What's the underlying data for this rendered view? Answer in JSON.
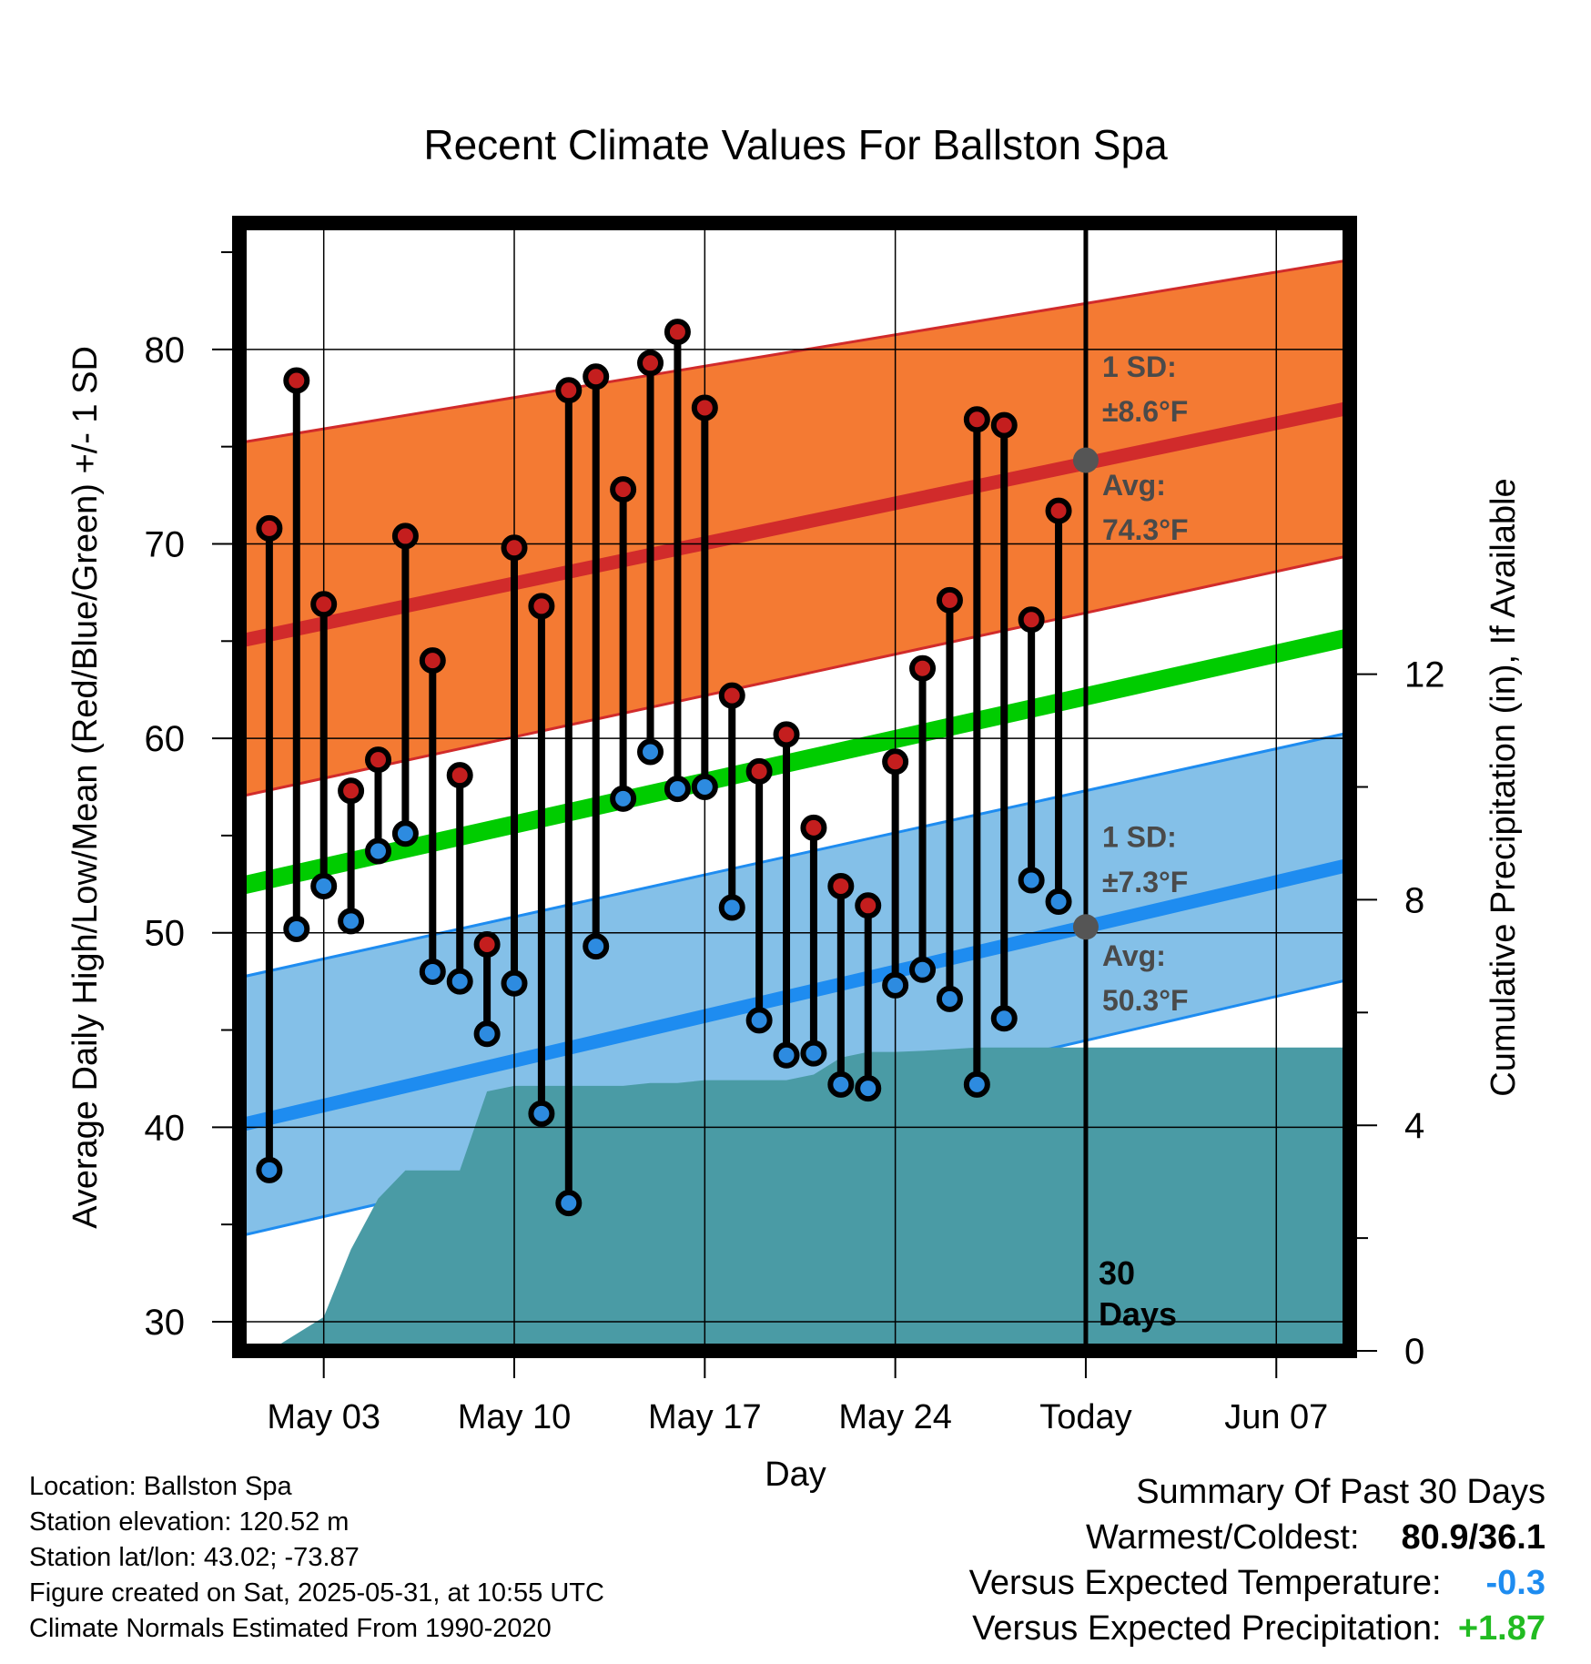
{
  "chart_data": {
    "type": "line",
    "title": "Recent Climate Values For Ballston Spa",
    "xlabel": "Day",
    "ylabel_left": "Average Daily High/Low/Mean (Red/Blue/Green) +/- 1 SD",
    "ylabel_right": "Cumulative Precipitation (in), If Available",
    "ylim": [
      28.5,
      86.5
    ],
    "yticks": [
      30,
      40,
      50,
      60,
      70,
      80
    ],
    "yticks_right": [
      0,
      4,
      8,
      12
    ],
    "y2lim": [
      0,
      20
    ],
    "x_tick_labels": [
      "May 03",
      "May 10",
      "May 17",
      "May 24",
      "Today",
      "Jun 07"
    ],
    "x_tick_dates": [
      "2025-05-03",
      "2025-05-10",
      "2025-05-17",
      "2025-05-24",
      "2025-05-31",
      "2025-06-07"
    ],
    "xlim": [
      "2025-04-29.9",
      "2025-06-09.7"
    ],
    "today": "2025-05-31",
    "grid": true,
    "daily": {
      "dates": [
        "2025-05-01",
        "2025-05-02",
        "2025-05-03",
        "2025-05-04",
        "2025-05-05",
        "2025-05-06",
        "2025-05-07",
        "2025-05-08",
        "2025-05-09",
        "2025-05-10",
        "2025-05-11",
        "2025-05-12",
        "2025-05-13",
        "2025-05-14",
        "2025-05-15",
        "2025-05-16",
        "2025-05-17",
        "2025-05-18",
        "2025-05-19",
        "2025-05-20",
        "2025-05-21",
        "2025-05-22",
        "2025-05-23",
        "2025-05-24",
        "2025-05-25",
        "2025-05-26",
        "2025-05-27",
        "2025-05-28",
        "2025-05-29",
        "2025-05-30"
      ],
      "high": [
        70.8,
        78.4,
        66.9,
        57.3,
        58.9,
        70.4,
        64.0,
        58.1,
        49.4,
        69.8,
        66.8,
        77.9,
        78.6,
        72.8,
        79.3,
        80.9,
        77.0,
        62.2,
        58.3,
        60.2,
        55.4,
        52.4,
        51.4,
        58.8,
        63.6,
        67.1,
        76.4,
        76.1,
        66.1,
        71.7
      ],
      "low": [
        37.8,
        50.2,
        52.4,
        50.6,
        54.2,
        55.1,
        48.0,
        47.5,
        44.8,
        47.4,
        40.7,
        36.1,
        49.3,
        56.9,
        59.3,
        57.4,
        57.5,
        51.3,
        45.5,
        43.7,
        43.8,
        42.2,
        42.0,
        47.3,
        48.1,
        46.6,
        42.2,
        45.6,
        52.7,
        51.6
      ]
    },
    "normals": {
      "dates": [
        "2025-04-29.9",
        "2025-06-09.7"
      ],
      "avg_high": [
        65.0,
        77.0
      ],
      "avg_high_upper": [
        75.2,
        84.6
      ],
      "avg_high_lower": [
        57.0,
        69.4
      ],
      "avg_mean": [
        52.4,
        65.2
      ],
      "avg_low": [
        40.1,
        53.5
      ],
      "avg_low_upper": [
        47.7,
        60.3
      ],
      "avg_low_lower": [
        34.4,
        47.6
      ]
    },
    "precip_cumulative": {
      "dates": [
        "2025-05-01",
        "2025-05-02",
        "2025-05-03",
        "2025-05-04",
        "2025-05-05",
        "2025-05-06",
        "2025-05-07",
        "2025-05-08",
        "2025-05-09",
        "2025-05-10",
        "2025-05-11",
        "2025-05-12",
        "2025-05-13",
        "2025-05-14",
        "2025-05-15",
        "2025-05-16",
        "2025-05-17",
        "2025-05-18",
        "2025-05-19",
        "2025-05-20",
        "2025-05-21",
        "2025-05-22",
        "2025-05-23",
        "2025-05-24",
        "2025-05-25",
        "2025-05-26",
        "2025-05-27",
        "2025-05-28",
        "2025-05-29",
        "2025-05-30",
        "2025-05-31",
        "2025-06-09.7"
      ],
      "values": [
        0.0,
        0.3,
        0.6,
        1.8,
        2.7,
        3.2,
        3.2,
        3.2,
        4.6,
        4.7,
        4.7,
        4.7,
        4.7,
        4.7,
        4.75,
        4.75,
        4.8,
        4.8,
        4.8,
        4.8,
        4.9,
        5.2,
        5.3,
        5.3,
        5.32,
        5.35,
        5.38,
        5.38,
        5.38,
        5.38,
        5.38,
        5.38
      ]
    },
    "annotations": {
      "high_sd_label": "1 SD:",
      "high_sd_value": "±8.6°F",
      "high_avg_label": "Avg:",
      "high_avg_value": "74.3°F",
      "high_avg_number": 74.3,
      "low_sd_label": "1 SD:",
      "low_sd_value": "±7.3°F",
      "low_avg_label": "Avg:",
      "low_avg_value": "50.3°F",
      "low_avg_number": 50.3,
      "days_number": "30",
      "days_word": "Days"
    },
    "colors": {
      "high_band": "#f47a33",
      "high_line": "#d12b2b",
      "low_band": "#84c0e8",
      "low_line": "#1e8cf0",
      "mean_line": "#00cc00",
      "precip": "#4a9ba5",
      "high_dot": "#c41e1e",
      "low_dot": "#2d8be0",
      "annotation_text": "#4a4a4a"
    }
  },
  "info": {
    "location": "Location: Ballston Spa",
    "elevation": "Station elevation: 120.52 m",
    "latlon": "Station lat/lon: 43.02; -73.87",
    "created": "Figure created on Sat, 2025-05-31, at 10:55 UTC",
    "normals": "Climate Normals Estimated From 1990-2020"
  },
  "summary": {
    "title": "Summary Of Past 30 Days",
    "warmest_label": "Warmest/Coldest:",
    "warmest_value": "80.9/36.1",
    "temp_label": "Versus Expected Temperature:",
    "temp_value": "-0.3",
    "temp_color": "#1e8cf0",
    "precip_label": "Versus Expected Precipitation:",
    "precip_value": "+1.87",
    "precip_color": "#22bb22"
  }
}
